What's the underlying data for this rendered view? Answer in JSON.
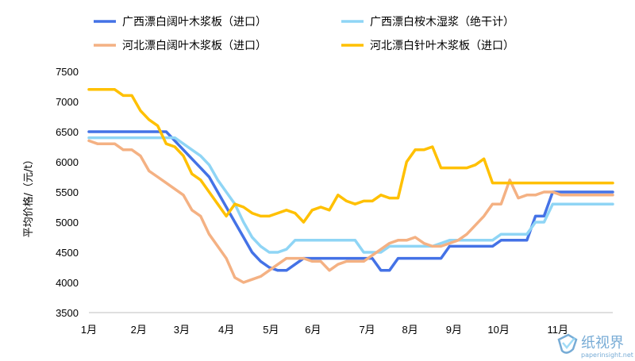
{
  "chart_data": {
    "type": "line",
    "ylabel": "平均价格/（元/t）",
    "ylim": [
      3500,
      7500
    ],
    "yticks": [
      3500,
      4000,
      4500,
      5000,
      5500,
      6000,
      6500,
      7000,
      7500
    ],
    "grid": false,
    "legend_position": "top",
    "x_tick_labels": [
      {
        "label": "1月",
        "at": 0
      },
      {
        "label": "2月",
        "at": 5.8
      },
      {
        "label": "3月",
        "at": 10.8
      },
      {
        "label": "4月",
        "at": 16.0
      },
      {
        "label": "5月",
        "at": 21.2
      },
      {
        "label": "6月",
        "at": 26.1
      },
      {
        "label": "7月",
        "at": 32.4
      },
      {
        "label": "8月",
        "at": 37.4
      },
      {
        "label": "9月",
        "at": 42.5
      },
      {
        "label": "10月",
        "at": 47.7
      },
      {
        "label": "11月",
        "at": 54.6
      }
    ],
    "series": [
      {
        "name": "广西漂白阔叶木浆板（进口）",
        "color": "#4472e6",
        "values": [
          6500,
          6500,
          6500,
          6500,
          6500,
          6500,
          6500,
          6500,
          6500,
          6500,
          6350,
          6200,
          6050,
          5900,
          5750,
          5500,
          5250,
          5000,
          4750,
          4500,
          4350,
          4250,
          4200,
          4200,
          4300,
          4400,
          4400,
          4400,
          4400,
          4400,
          4400,
          4400,
          4400,
          4400,
          4200,
          4200,
          4400,
          4400,
          4400,
          4400,
          4400,
          4400,
          4600,
          4600,
          4600,
          4600,
          4600,
          4600,
          4700,
          4700,
          4700,
          4700,
          5100,
          5100,
          5500,
          5500,
          5500,
          5500,
          5500,
          5500,
          5500,
          5500
        ]
      },
      {
        "name": "广西漂白桉木湿浆（绝干计）",
        "color": "#8fd5f5",
        "values": [
          6400,
          6400,
          6400,
          6400,
          6400,
          6400,
          6400,
          6400,
          6400,
          6400,
          6400,
          6300,
          6200,
          6100,
          5950,
          5700,
          5500,
          5300,
          5000,
          4750,
          4600,
          4500,
          4500,
          4550,
          4700,
          4700,
          4700,
          4700,
          4700,
          4700,
          4700,
          4700,
          4500,
          4500,
          4500,
          4600,
          4600,
          4600,
          4600,
          4600,
          4600,
          4650,
          4700,
          4700,
          4700,
          4700,
          4700,
          4700,
          4800,
          4800,
          4800,
          4800,
          5000,
          5000,
          5300,
          5300,
          5300,
          5300,
          5300,
          5300,
          5300,
          5300
        ]
      },
      {
        "name": "河北漂白阔叶木浆板（进口）",
        "color": "#f4b183",
        "values": [
          6350,
          6300,
          6300,
          6300,
          6200,
          6200,
          6100,
          5850,
          5750,
          5650,
          5550,
          5450,
          5200,
          5100,
          4800,
          4600,
          4400,
          4080,
          4000,
          4050,
          4100,
          4200,
          4300,
          4400,
          4400,
          4400,
          4350,
          4350,
          4200,
          4300,
          4350,
          4350,
          4350,
          4450,
          4550,
          4650,
          4700,
          4700,
          4750,
          4650,
          4600,
          4600,
          4650,
          4700,
          4800,
          4950,
          5100,
          5300,
          5300,
          5700,
          5400,
          5450,
          5450,
          5500,
          5500,
          5450,
          5450,
          5450,
          5450,
          5450,
          5450,
          5450
        ]
      },
      {
        "name": "河北漂白针叶木浆板（进口）",
        "color": "#ffc000",
        "values": [
          7200,
          7200,
          7200,
          7200,
          7100,
          7100,
          6850,
          6700,
          6600,
          6300,
          6250,
          6100,
          5800,
          5700,
          5500,
          5300,
          5100,
          5300,
          5250,
          5150,
          5100,
          5100,
          5150,
          5200,
          5150,
          5000,
          5200,
          5250,
          5200,
          5450,
          5350,
          5300,
          5350,
          5350,
          5450,
          5400,
          5400,
          6000,
          6200,
          6200,
          6250,
          5900,
          5900,
          5900,
          5900,
          5950,
          6050,
          5650,
          5650,
          5650,
          5650,
          5650,
          5650,
          5650,
          5650,
          5650,
          5650,
          5650,
          5650,
          5650,
          5650,
          5650
        ]
      }
    ]
  },
  "watermark": {
    "brand": "纸视界",
    "url": "paperinsight.net",
    "color": "#4a90c8"
  }
}
